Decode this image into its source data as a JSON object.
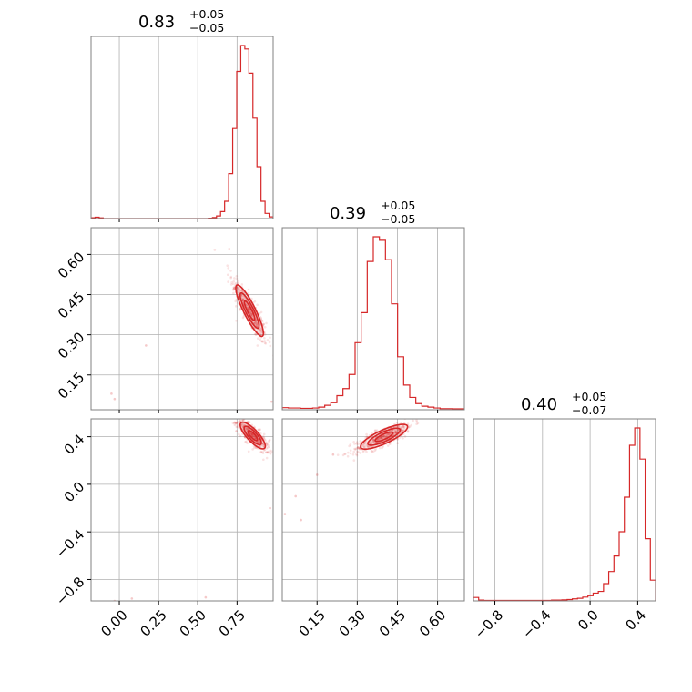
{
  "chart_data": {
    "type": "corner",
    "color": "#d62728",
    "grid": true,
    "titles": [
      {
        "value": "0.83",
        "plus": "+0.05",
        "minus": "−0.05"
      },
      {
        "value": "0.39",
        "plus": "+0.05",
        "minus": "−0.05"
      },
      {
        "value": "0.40",
        "plus": "+0.05",
        "minus": "−0.07"
      }
    ],
    "params": [
      {
        "range": [
          -0.18,
          0.98
        ],
        "ticks": [
          0.0,
          0.25,
          0.5,
          0.75
        ],
        "tick_labels": [
          "0.00",
          "0.25",
          "0.50",
          "0.75"
        ]
      },
      {
        "range": [
          0.02,
          0.7
        ],
        "ticks": [
          0.15,
          0.3,
          0.45,
          0.6
        ],
        "tick_labels": [
          "0.15",
          "0.30",
          "0.45",
          "0.60"
        ]
      },
      {
        "range": [
          -0.98,
          0.55
        ],
        "ticks": [
          -0.8,
          -0.4,
          0.0,
          0.4
        ],
        "tick_labels": [
          "−0.8",
          "−0.4",
          "0.0",
          "0.4"
        ]
      }
    ],
    "hist1d": [
      {
        "bins": [
          -0.18,
          0.98
        ],
        "counts": [
          0.5,
          0.8,
          0.4,
          0,
          0,
          0,
          0,
          0,
          0,
          0,
          0,
          0,
          0,
          0,
          0,
          0,
          0,
          0,
          0,
          0,
          0,
          0,
          0,
          0,
          0,
          0,
          0,
          0,
          0,
          0.2,
          0.6,
          1.5,
          4,
          10,
          26,
          52,
          85,
          100,
          98,
          84,
          58,
          30,
          10,
          3,
          1
        ]
      },
      {
        "bins": [
          0.02,
          0.7
        ],
        "counts": [
          1.2,
          1,
          1,
          0.8,
          0.8,
          1,
          1.5,
          2.5,
          4,
          8,
          12,
          20,
          38,
          55,
          84,
          98,
          96,
          85,
          60,
          30,
          14,
          7,
          3.5,
          2,
          1.5,
          1,
          0.6,
          0.6,
          0.5,
          0.5
        ]
      },
      {
        "bins": [
          -0.98,
          0.55
        ],
        "counts": [
          2,
          0.5,
          0.3,
          0.3,
          0.3,
          0.3,
          0.3,
          0.3,
          0.3,
          0.3,
          0.3,
          0.3,
          0.3,
          0.3,
          0.3,
          0.5,
          0.5,
          0.6,
          0.8,
          1.2,
          1.5,
          2.2,
          3,
          4.5,
          5.5,
          10,
          17,
          26,
          40,
          60,
          90,
          100,
          82,
          36,
          12
        ]
      }
    ],
    "pairs": [
      {
        "x": 0,
        "y": 1,
        "mean": [
          0.83,
          0.39
        ],
        "sd": [
          0.055,
          0.06
        ],
        "rho": -0.88,
        "outliers": [
          [
            -0.05,
            0.08
          ],
          [
            -0.03,
            0.06
          ],
          [
            0.17,
            0.26
          ],
          [
            0.97,
            0.05
          ],
          [
            0.7,
            0.62
          ]
        ]
      },
      {
        "x": 0,
        "y": 2,
        "mean": [
          0.85,
          0.41
        ],
        "sd": [
          0.05,
          0.07
        ],
        "rho": -0.8,
        "outliers": [
          [
            -0.03,
            -0.98
          ],
          [
            0.08,
            -0.96
          ],
          [
            0.96,
            -0.2
          ],
          [
            0.55,
            -0.95
          ]
        ]
      },
      {
        "x": 1,
        "y": 2,
        "mean": [
          0.4,
          0.4
        ],
        "sd": [
          0.055,
          0.065
        ],
        "rho": 0.8,
        "outliers": [
          [
            0.03,
            -0.25
          ],
          [
            0.07,
            -0.1
          ],
          [
            0.15,
            0.08
          ],
          [
            0.21,
            0.25
          ],
          [
            0.09,
            -0.3
          ]
        ]
      }
    ],
    "contour_levels_sigma": [
      0.6,
      1.1,
      1.6
    ]
  }
}
